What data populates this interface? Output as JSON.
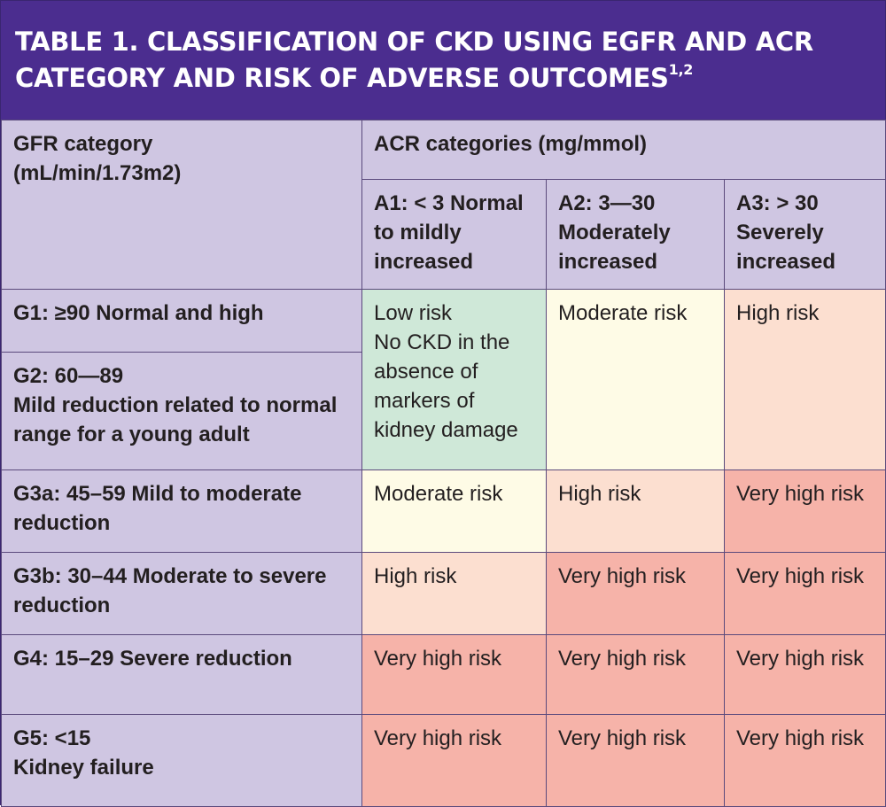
{
  "title": {
    "text": "TABLE 1. CLASSIFICATION OF CKD USING eGFR AND ACR CATEGORY AND RISK OF ADVERSE OUTCOMES",
    "superscript": "1,2"
  },
  "header": {
    "gfr_category": [
      "GFR category",
      "(mL/min/1.73m2)"
    ],
    "acr_categories": "ACR categories (mg/mmol)",
    "a1": [
      "A1: < 3 Normal",
      "to mildly",
      "increased"
    ],
    "a2": [
      "A2: 3—30",
      "Moderately",
      "increased"
    ],
    "a3": [
      "A3: > 30",
      "Severely",
      "increased"
    ]
  },
  "rows": {
    "g1": "G1: ≥90 Normal and high",
    "g2": [
      "G2: 60—89",
      "Mild reduction related to normal",
      "range for a young adult"
    ],
    "g3a": [
      "G3a: 45–59 Mild to moderate",
      "reduction"
    ],
    "g3b": [
      "G3b: 30–44 Moderate to severe",
      "reduction"
    ],
    "g4": "G4: 15–29 Severe reduction",
    "g5": [
      "G5: <15",
      "Kidney failure"
    ]
  },
  "cells": {
    "g12_a1": [
      "Low risk",
      "No CKD in the",
      "absence of",
      "markers of",
      "kidney damage"
    ],
    "g12_a2": "Moderate risk",
    "g12_a3": "High risk",
    "g3a_a1": "Moderate risk",
    "g3a_a2": "High risk",
    "g3a_a3": "Very high risk",
    "g3b_a1": "High risk",
    "g3b_a2": "Very high risk",
    "g3b_a3": "Very high risk",
    "g4_a1": "Very high risk",
    "g4_a2": "Very high risk",
    "g4_a3": "Very high risk",
    "g5_a1": "Very high risk",
    "g5_a2": "Very high risk",
    "g5_a3": "Very high risk"
  },
  "colors": {
    "title_bg": "#4b2d8f",
    "header_bg": "#cfc6e2",
    "low_risk": "#cfe8d8",
    "moderate_risk": "#fefbe6",
    "high_risk": "#fcdfd0",
    "very_high_risk": "#f6b3a9"
  }
}
